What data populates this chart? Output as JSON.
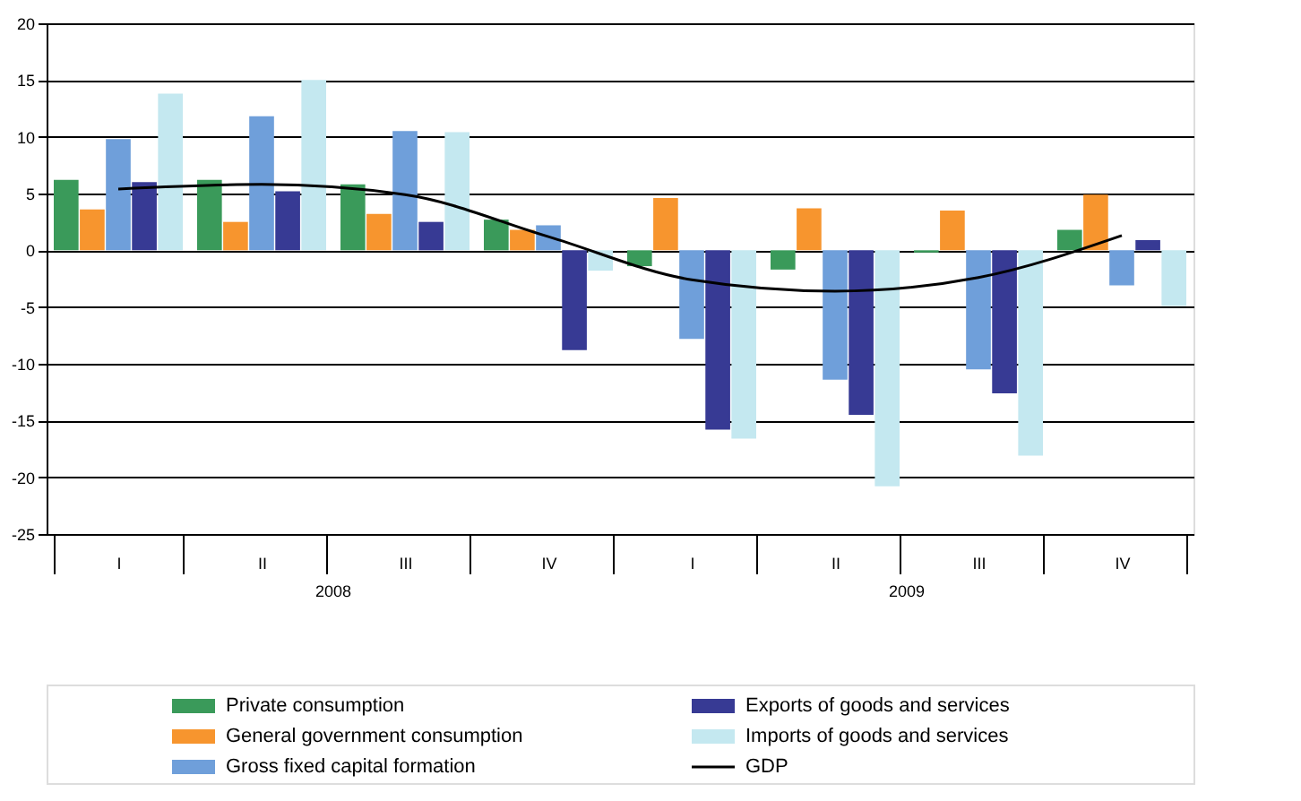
{
  "chart_data": {
    "type": "bar",
    "categories": [
      "I",
      "II",
      "III",
      "IV",
      "I",
      "II",
      "III",
      "IV"
    ],
    "series": [
      {
        "name": "Private consumption",
        "color": "#3a9a5a",
        "values": [
          6.2,
          6.2,
          5.8,
          2.7,
          -1.4,
          -1.7,
          -0.2,
          1.8
        ]
      },
      {
        "name": "General government consumption",
        "color": "#f7952e",
        "values": [
          3.6,
          2.5,
          3.2,
          1.8,
          4.6,
          3.7,
          3.5,
          4.9
        ]
      },
      {
        "name": "Gross fixed capital formation",
        "color": "#6f9fda",
        "values": [
          9.8,
          11.8,
          10.5,
          2.2,
          -7.8,
          -11.4,
          -10.5,
          -3.1
        ]
      },
      {
        "name": "Exports of goods and services",
        "color": "#373a94",
        "values": [
          6.0,
          5.2,
          2.5,
          -8.8,
          -15.8,
          -14.5,
          -12.6,
          0.9
        ]
      },
      {
        "name": "Imports of goods and services",
        "color": "#c4e8f0",
        "values": [
          13.8,
          15.0,
          10.4,
          -1.8,
          -16.6,
          -20.8,
          -18.1,
          -4.9
        ]
      },
      {
        "name": "GDP",
        "type": "line",
        "color": "#000000",
        "values": [
          5.4,
          5.8,
          4.9,
          1.2,
          -2.6,
          -3.6,
          -2.4,
          1.3
        ]
      }
    ],
    "annotations": [
      "2008",
      "2009"
    ],
    "ylim": [
      -25,
      20
    ],
    "yticks": [
      -25,
      -20,
      -15,
      -10,
      -5,
      0,
      5,
      10,
      15,
      20
    ],
    "grid": "y",
    "legend": "bottom"
  }
}
